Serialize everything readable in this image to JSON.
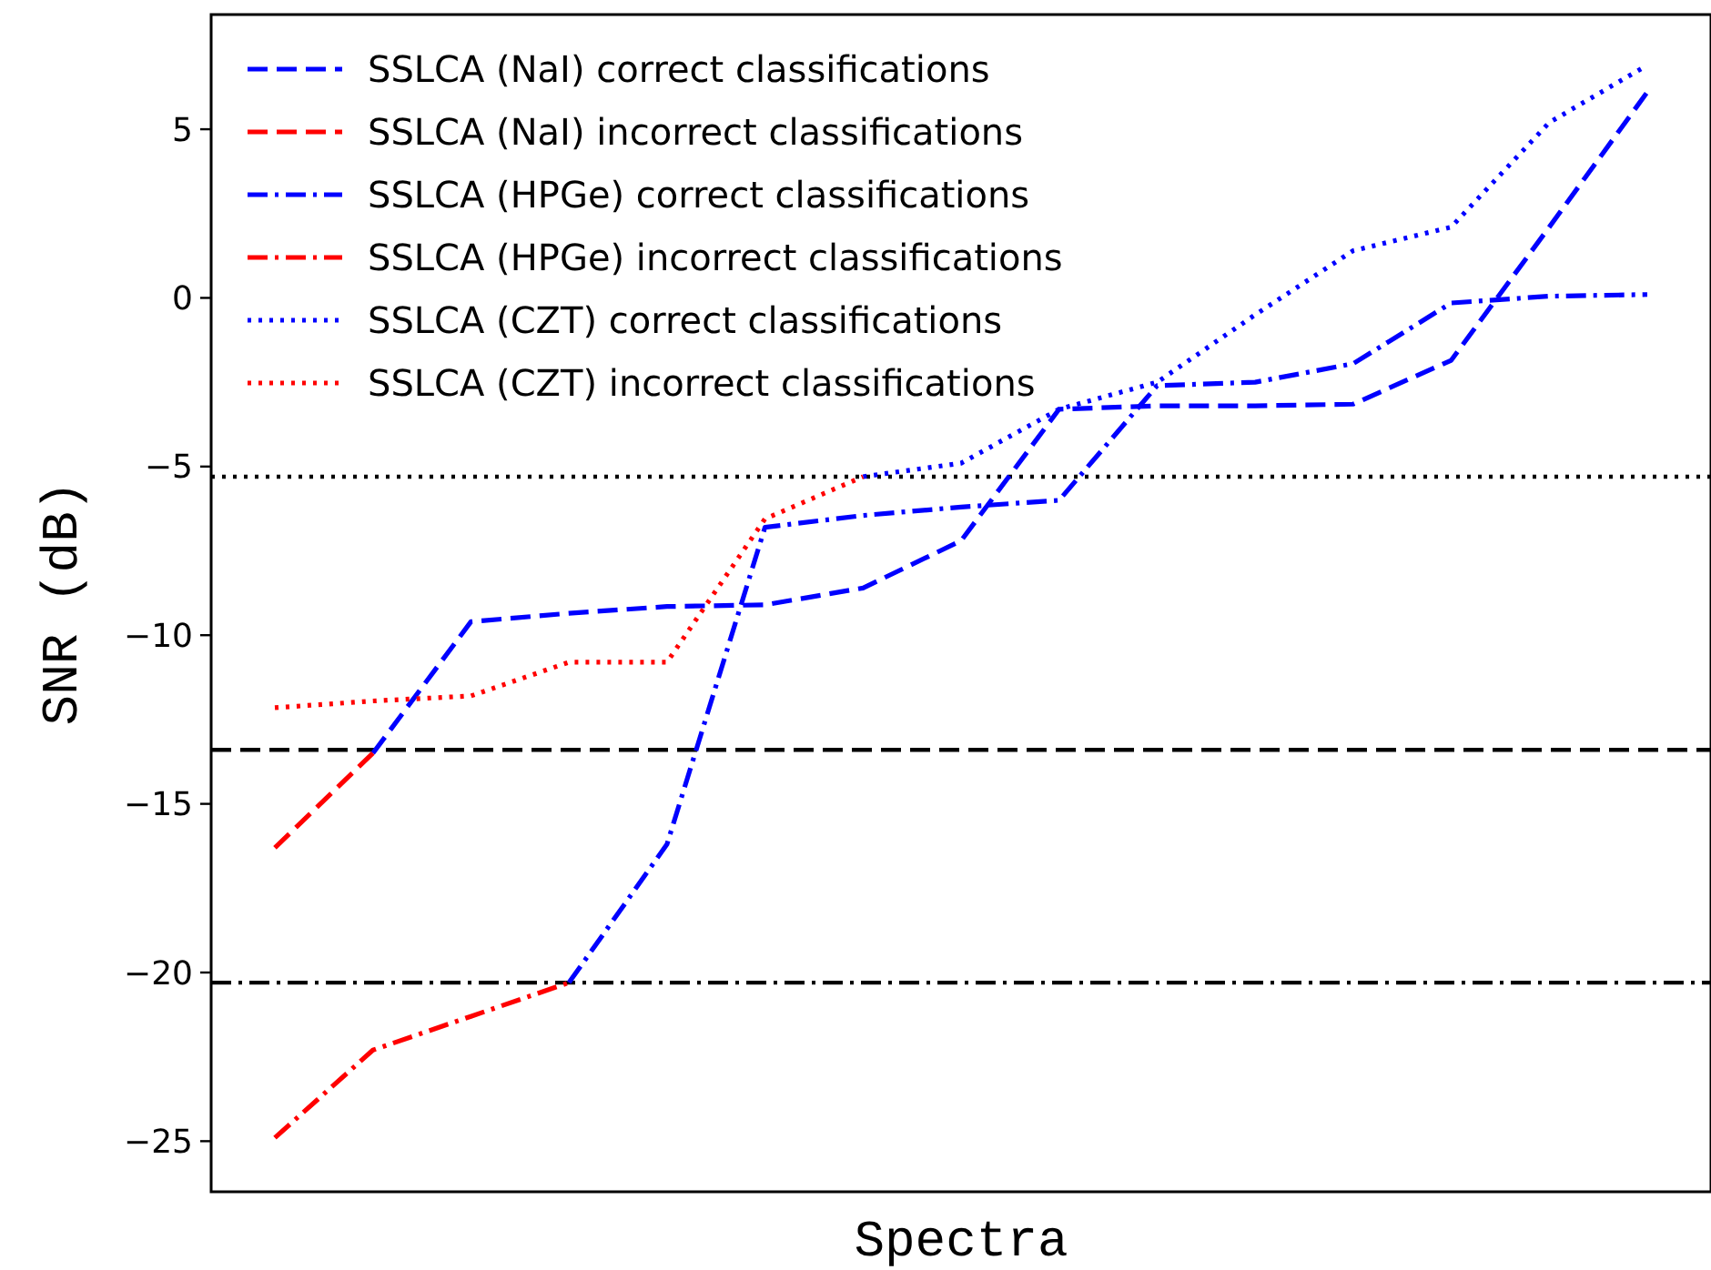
{
  "chart_data": {
    "type": "line",
    "xlabel": "Spectra",
    "ylabel": "SNR (dB)",
    "categories": [
      null,
      null,
      null,
      null,
      null,
      null,
      null,
      null,
      null,
      null,
      null,
      null,
      null,
      null,
      null
    ],
    "ylim": [
      -26.5,
      8.4
    ],
    "yticks": [
      -25,
      -20,
      -15,
      -10,
      -5,
      0,
      5
    ],
    "legend": "top left",
    "grid": false,
    "series": [
      {
        "name": "SSLCA (NaI) correct classifications",
        "color": "#0000ff",
        "line_style": "dashed",
        "values": [
          null,
          -13.5,
          -9.6,
          -9.35,
          -9.15,
          -9.1,
          -8.6,
          -7.2,
          -3.3,
          -3.2,
          -3.2,
          -3.15,
          -1.85,
          2.1,
          6.1
        ]
      },
      {
        "name": "SSLCA (NaI) incorrect classifications",
        "color": "#ff0000",
        "line_style": "dashed",
        "values": [
          -16.3,
          -13.5,
          null,
          null,
          null,
          null,
          null,
          null,
          null,
          null,
          null,
          null,
          null,
          null,
          null
        ]
      },
      {
        "name": "SSLCA (HPGe) correct classifications",
        "color": "#0000ff",
        "line_style": "dashdot",
        "values": [
          null,
          null,
          null,
          -20.3,
          -16.2,
          -6.8,
          -6.45,
          -6.2,
          -6.0,
          -2.6,
          -2.5,
          -1.95,
          -0.15,
          0.05,
          0.1
        ]
      },
      {
        "name": "SSLCA (HPGe) incorrect classifications",
        "color": "#ff0000",
        "line_style": "dashdot",
        "values": [
          -24.9,
          -22.3,
          -21.3,
          -20.3,
          null,
          null,
          null,
          null,
          null,
          null,
          null,
          null,
          null,
          null,
          null
        ]
      },
      {
        "name": "SSLCA (CZT) correct classifications",
        "color": "#0000ff",
        "line_style": "dotted",
        "values": [
          null,
          null,
          null,
          null,
          null,
          null,
          -5.3,
          -4.9,
          -3.3,
          -2.5,
          -0.5,
          1.4,
          2.1,
          5.2,
          6.9
        ]
      },
      {
        "name": "SSLCA (CZT) incorrect classifications",
        "color": "#ff0000",
        "line_style": "dotted",
        "values": [
          -12.15,
          -11.95,
          -11.8,
          -10.8,
          -10.8,
          -6.55,
          -5.3,
          null,
          null,
          null,
          null,
          null,
          null,
          null,
          null
        ]
      }
    ],
    "ref_lines": [
      {
        "axis": "y",
        "value": -5.3,
        "color": "#000000",
        "line_style": "dotted"
      },
      {
        "axis": "y",
        "value": -13.4,
        "color": "#000000",
        "line_style": "dashed"
      },
      {
        "axis": "y",
        "value": -20.3,
        "color": "#000000",
        "line_style": "dashdot"
      }
    ]
  }
}
